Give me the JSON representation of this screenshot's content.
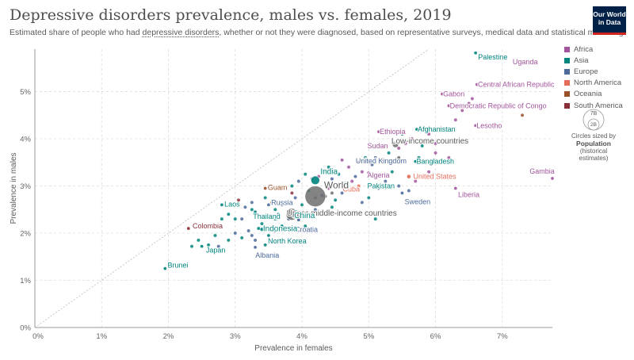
{
  "header": {
    "title": "Depressive disorders prevalence, males vs. females, 2019",
    "subtitle_before": "Estimated share of people who had ",
    "subtitle_link": "depressive disorders",
    "subtitle_after": ", whether or not they were diagnosed, based on representative surveys, medical data and statistical modelling.",
    "logo_line1": "Our World",
    "logo_line2": "in Data"
  },
  "colors": {
    "Africa": "#a2559c",
    "Asia": "#00847e",
    "Europe": "#4c6a9c",
    "North America": "#e56e5a",
    "Oceania": "#9a5129",
    "South America": "#883039",
    "aggregate": "#6d6d6d"
  },
  "legend": {
    "entries": [
      "Africa",
      "Asia",
      "Europe",
      "North America",
      "Oceania",
      "South America"
    ]
  },
  "size_key": {
    "large_label": "7B",
    "small_label": "2B",
    "caption": "Circles sized by",
    "variable": "Population",
    "note_line1": "(historical",
    "note_line2": "estimates)"
  },
  "chart_data": {
    "type": "scatter",
    "xlabel": "Prevalence in females",
    "ylabel": "Prevalence in males",
    "xlim": [
      0,
      7.75
    ],
    "ylim": [
      0,
      5.9
    ],
    "x_ticks": [
      0,
      1,
      2,
      3,
      4,
      5,
      6,
      7
    ],
    "y_ticks": [
      0,
      1,
      2,
      3,
      4,
      5
    ],
    "x_tick_labels": [
      "0%",
      "1%",
      "2%",
      "3%",
      "4%",
      "5%",
      "6%",
      "7%"
    ],
    "y_tick_labels": [
      "0%",
      "1%",
      "2%",
      "3%",
      "4%",
      "5%"
    ],
    "grid": true,
    "reference_line": "y = x",
    "legend_position": "right",
    "labeled_points": [
      {
        "name": "Palestine",
        "x": 6.6,
        "y": 5.82,
        "region": "Asia",
        "pop": 0.005
      },
      {
        "name": "Uganda",
        "x": 7.45,
        "y": 5.6,
        "region": "Africa",
        "pop": 0.044
      },
      {
        "name": "Central African Republic",
        "x": 6.62,
        "y": 5.15,
        "region": "Africa",
        "pop": 0.005
      },
      {
        "name": "Gabon",
        "x": 6.1,
        "y": 4.95,
        "region": "Africa",
        "pop": 0.002
      },
      {
        "name": "Democratic Republic of Congo",
        "x": 6.2,
        "y": 4.7,
        "region": "Africa",
        "pop": 0.087
      },
      {
        "name": "Lesotho",
        "x": 6.6,
        "y": 4.28,
        "region": "Africa",
        "pop": 0.002
      },
      {
        "name": "Afghanistan",
        "x": 5.72,
        "y": 4.2,
        "region": "Asia",
        "pop": 0.038
      },
      {
        "name": "Ethiopia",
        "x": 5.15,
        "y": 4.15,
        "region": "Africa",
        "pop": 0.112
      },
      {
        "name": "Sudan",
        "x": 5.0,
        "y": 3.85,
        "region": "Africa",
        "pop": 0.043
      },
      {
        "name": "Low-income countries",
        "x": 5.4,
        "y": 3.88,
        "region": "aggregate",
        "pop": 0.7
      },
      {
        "name": "United Kingdom",
        "x": 5.1,
        "y": 3.6,
        "region": "Europe",
        "pop": 0.067
      },
      {
        "name": "Bangladesh",
        "x": 5.7,
        "y": 3.52,
        "region": "Asia",
        "pop": 0.163
      },
      {
        "name": "India",
        "x": 4.2,
        "y": 3.12,
        "region": "Asia",
        "pop": 1.36
      },
      {
        "name": "Algeria",
        "x": 5.0,
        "y": 3.28,
        "region": "Africa",
        "pop": 0.043
      },
      {
        "name": "United States",
        "x": 5.6,
        "y": 3.2,
        "region": "North America",
        "pop": 0.329
      },
      {
        "name": "Gambia",
        "x": 7.75,
        "y": 3.16,
        "region": "Africa",
        "pop": 0.002
      },
      {
        "name": "Pakistan",
        "x": 5.0,
        "y": 3.0,
        "region": "Asia",
        "pop": 0.217
      },
      {
        "name": "Cuba",
        "x": 4.62,
        "y": 2.97,
        "region": "North America",
        "pop": 0.011
      },
      {
        "name": "World",
        "x": 4.2,
        "y": 2.78,
        "region": "aggregate",
        "pop": 7.7
      },
      {
        "name": "Guam",
        "x": 3.45,
        "y": 2.95,
        "region": "Oceania",
        "pop": 0.0002
      },
      {
        "name": "Sweden",
        "x": 5.5,
        "y": 2.85,
        "region": "Europe",
        "pop": 0.01
      },
      {
        "name": "Liberia",
        "x": 6.3,
        "y": 2.95,
        "region": "Africa",
        "pop": 0.005
      },
      {
        "name": "Russia",
        "x": 3.5,
        "y": 2.6,
        "region": "Europe",
        "pop": 0.144
      },
      {
        "name": "Laos",
        "x": 2.8,
        "y": 2.6,
        "region": "Asia",
        "pop": 0.007
      },
      {
        "name": "Upper-middle-income countries",
        "x": 3.85,
        "y": 2.4,
        "region": "aggregate",
        "pop": 2.5
      },
      {
        "name": "Thailand",
        "x": 3.3,
        "y": 2.45,
        "region": "Asia",
        "pop": 0.07
      },
      {
        "name": "Croatia",
        "x": 3.95,
        "y": 2.28,
        "region": "Europe",
        "pop": 0.004
      },
      {
        "name": "China",
        "x": 3.9,
        "y": 2.4,
        "region": "Asia",
        "pop": 1.42
      },
      {
        "name": "Colombia",
        "x": 2.3,
        "y": 2.1,
        "region": "South America",
        "pop": 0.05
      },
      {
        "name": "Indonesia",
        "x": 3.4,
        "y": 2.08,
        "region": "Asia",
        "pop": 0.27
      },
      {
        "name": "North Korea",
        "x": 3.5,
        "y": 1.95,
        "region": "Asia",
        "pop": 0.026
      },
      {
        "name": "Japan",
        "x": 2.5,
        "y": 1.72,
        "region": "Asia",
        "pop": 0.126
      },
      {
        "name": "Albania",
        "x": 3.3,
        "y": 1.7,
        "region": "Europe",
        "pop": 0.003
      },
      {
        "name": "Brunei",
        "x": 1.95,
        "y": 1.25,
        "region": "Asia",
        "pop": 0.0004
      }
    ],
    "other_points": [
      [
        3.4,
        2.2,
        "Asia"
      ],
      [
        3.2,
        2.05,
        "Europe"
      ],
      [
        3.1,
        1.9,
        "Asia"
      ],
      [
        3.3,
        1.85,
        "Europe"
      ],
      [
        2.9,
        1.85,
        "Asia"
      ],
      [
        3.0,
        2.0,
        "Europe"
      ],
      [
        2.7,
        1.95,
        "Asia"
      ],
      [
        2.6,
        1.75,
        "Asia"
      ],
      [
        2.45,
        1.85,
        "Asia"
      ],
      [
        2.35,
        1.72,
        "Asia"
      ],
      [
        2.75,
        1.72,
        "Europe"
      ],
      [
        3.55,
        1.8,
        "Europe"
      ],
      [
        3.6,
        2.05,
        "Europe"
      ],
      [
        3.7,
        2.15,
        "Asia"
      ],
      [
        3.8,
        2.3,
        "Europe"
      ],
      [
        3.25,
        2.5,
        "Asia"
      ],
      [
        3.15,
        2.55,
        "Europe"
      ],
      [
        3.35,
        2.35,
        "Europe"
      ],
      [
        3.6,
        2.5,
        "Asia"
      ],
      [
        3.7,
        2.6,
        "Europe"
      ],
      [
        3.8,
        2.65,
        "Oceania"
      ],
      [
        3.9,
        2.75,
        "Europe"
      ],
      [
        4.0,
        2.6,
        "Asia"
      ],
      [
        4.1,
        2.9,
        "Asia"
      ],
      [
        4.3,
        2.8,
        "Europe"
      ],
      [
        4.4,
        2.95,
        "Africa"
      ],
      [
        4.5,
        2.7,
        "Asia"
      ],
      [
        4.6,
        2.85,
        "Europe"
      ],
      [
        4.75,
        3.1,
        "Africa"
      ],
      [
        4.65,
        3.05,
        "Asia"
      ],
      [
        4.8,
        3.2,
        "Europe"
      ],
      [
        4.9,
        3.3,
        "Africa"
      ],
      [
        4.55,
        3.25,
        "Asia"
      ],
      [
        4.45,
        3.15,
        "Europe"
      ],
      [
        4.35,
        3.3,
        "Asia"
      ],
      [
        4.25,
        3.2,
        "Africa"
      ],
      [
        4.15,
        3.15,
        "Europe"
      ],
      [
        4.05,
        3.25,
        "Asia"
      ],
      [
        3.95,
        3.1,
        "Europe"
      ],
      [
        3.85,
        3.0,
        "Asia"
      ],
      [
        3.75,
        2.95,
        "Europe"
      ],
      [
        4.7,
        3.4,
        "Africa"
      ],
      [
        4.85,
        3.5,
        "Africa"
      ],
      [
        4.95,
        3.6,
        "Asia"
      ],
      [
        5.05,
        3.45,
        "Europe"
      ],
      [
        5.2,
        3.55,
        "Africa"
      ],
      [
        5.3,
        3.7,
        "Asia"
      ],
      [
        5.45,
        3.8,
        "Africa"
      ],
      [
        5.55,
        3.9,
        "Africa"
      ],
      [
        5.65,
        4.0,
        "Africa"
      ],
      [
        5.8,
        3.85,
        "Asia"
      ],
      [
        5.9,
        4.1,
        "Africa"
      ],
      [
        6.0,
        3.9,
        "Africa"
      ],
      [
        6.1,
        4.2,
        "Africa"
      ],
      [
        5.75,
        3.6,
        "Asia"
      ],
      [
        5.35,
        3.3,
        "Asia"
      ],
      [
        5.25,
        3.1,
        "Europe"
      ],
      [
        5.15,
        2.95,
        "Europe"
      ],
      [
        5.45,
        3.0,
        "Europe"
      ],
      [
        5.6,
        2.9,
        "Europe"
      ],
      [
        5.7,
        3.1,
        "Africa"
      ],
      [
        5.9,
        3.3,
        "Africa"
      ],
      [
        6.2,
        3.6,
        "Africa"
      ],
      [
        6.4,
        4.6,
        "Africa"
      ],
      [
        6.5,
        4.75,
        "Africa"
      ],
      [
        6.55,
        4.85,
        "Africa"
      ],
      [
        6.3,
        4.4,
        "Africa"
      ],
      [
        7.3,
        4.5,
        "Oceania"
      ],
      [
        6.15,
        3.2,
        "Africa"
      ],
      [
        5.1,
        2.3,
        "Asia"
      ],
      [
        4.45,
        2.55,
        "Asia"
      ],
      [
        4.05,
        2.15,
        "Asia"
      ],
      [
        3.95,
        2.3,
        "Europe"
      ],
      [
        3.65,
        2.4,
        "Asia"
      ],
      [
        3.45,
        2.75,
        "Asia"
      ],
      [
        3.05,
        2.7,
        "South America"
      ],
      [
        3.0,
        2.3,
        "Asia"
      ],
      [
        2.9,
        2.4,
        "Asia"
      ],
      [
        2.8,
        2.3,
        "Asia"
      ],
      [
        3.1,
        2.3,
        "Europe"
      ],
      [
        3.25,
        2.65,
        "Europe"
      ],
      [
        3.55,
        2.65,
        "Oceania"
      ],
      [
        3.85,
        2.85,
        "South America"
      ],
      [
        4.55,
        2.4,
        "Africa"
      ],
      [
        4.2,
        2.5,
        "Europe"
      ],
      [
        5.0,
        2.75,
        "Asia"
      ],
      [
        4.9,
        2.65,
        "Europe"
      ],
      [
        4.85,
        3.0,
        "North America"
      ],
      [
        4.4,
        3.4,
        "Asia"
      ],
      [
        4.6,
        3.55,
        "Africa"
      ],
      [
        5.5,
        4.1,
        "Asia"
      ],
      [
        6.0,
        3.7,
        "Africa"
      ],
      [
        3.6,
        2.3,
        "Asia"
      ],
      [
        3.35,
        2.1,
        "Asia"
      ],
      [
        3.25,
        1.95,
        "Europe"
      ],
      [
        3.45,
        1.75,
        "Asia"
      ],
      [
        4.2,
        2.75,
        "aggregate"
      ],
      [
        4.35,
        2.78,
        "aggregate"
      ],
      [
        4.45,
        2.85,
        "aggregate"
      ],
      [
        5.45,
        3.6,
        "aggregate"
      ]
    ]
  }
}
